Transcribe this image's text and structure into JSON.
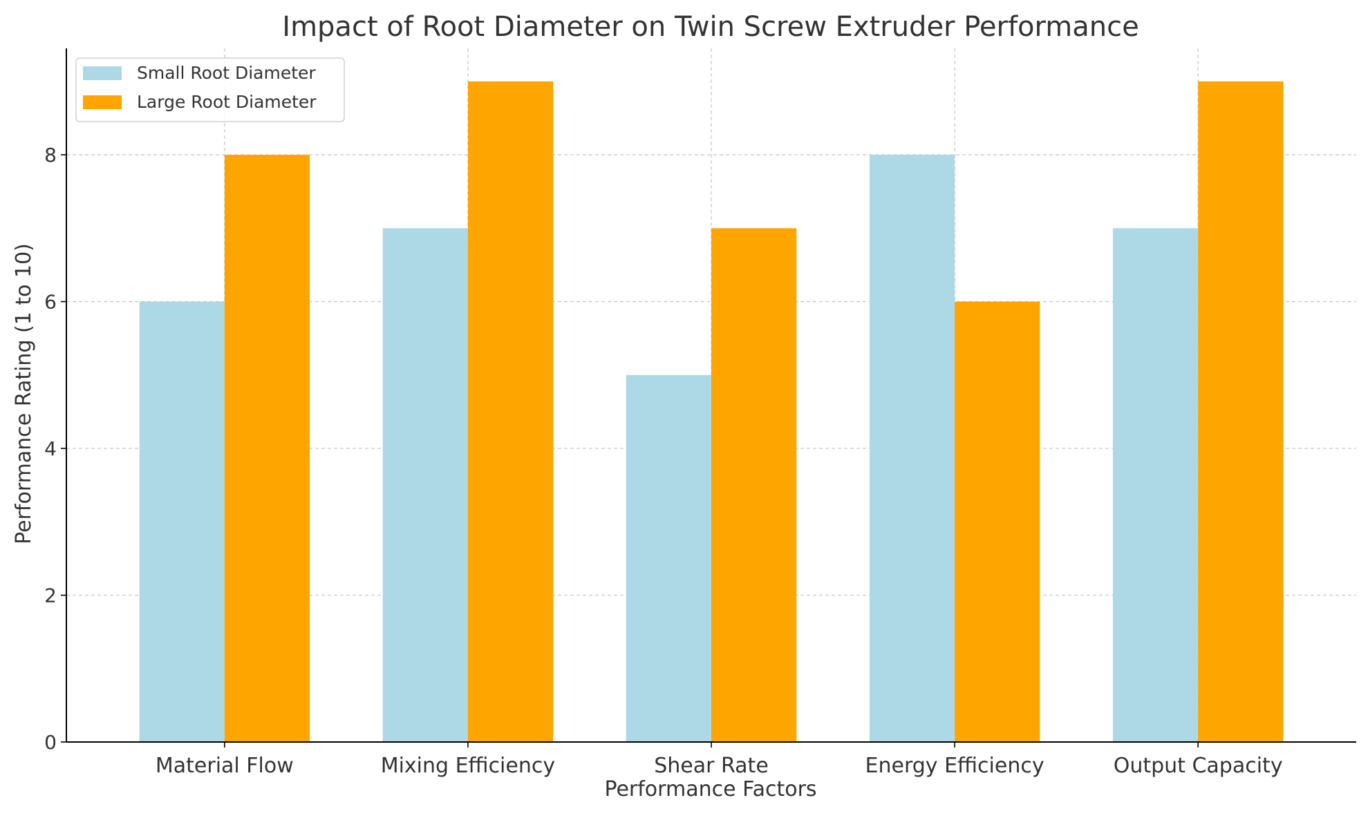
{
  "chart_data": {
    "type": "bar",
    "title": "Impact of Root Diameter on Twin Screw Extruder Performance",
    "xlabel": "Performance Factors",
    "ylabel": "Performance Rating (1 to 10)",
    "categories": [
      "Material Flow",
      "Mixing Efficiency",
      "Shear Rate",
      "Energy Efficiency",
      "Output Capacity"
    ],
    "series": [
      {
        "name": "Small Root Diameter",
        "values": [
          6,
          7,
          5,
          8,
          7
        ],
        "color": "#add8e6"
      },
      {
        "name": "Large Root Diameter",
        "values": [
          8,
          9,
          7,
          6,
          9
        ],
        "color": "#ffa500"
      }
    ],
    "ylim": [
      0,
      9.45
    ],
    "yticks": [
      0,
      2,
      4,
      6,
      8
    ],
    "grid": true,
    "legend": "top-left"
  }
}
